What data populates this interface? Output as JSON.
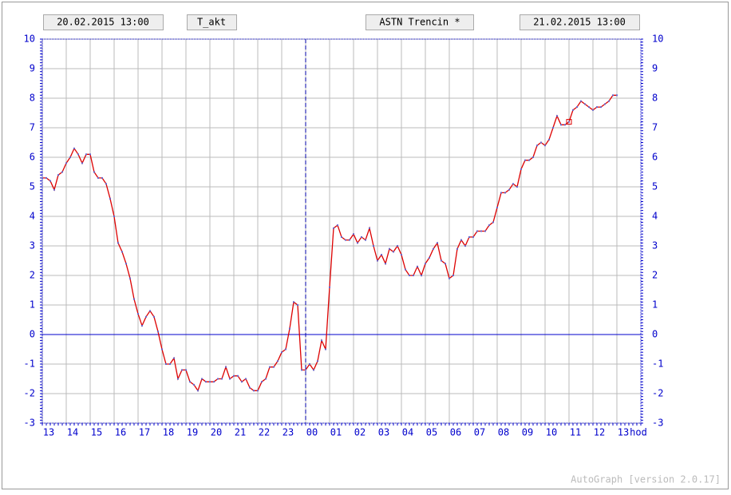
{
  "header": {
    "start": "20.02.2015 13:00",
    "variable": "T_akt",
    "station": "ASTN Trencin *",
    "end": "21.02.2015 13:00"
  },
  "footer": "AutoGraph [version 2.0.17]",
  "chart_data": {
    "type": "line",
    "x_label": "hod",
    "color": "#dd0000",
    "point_color": "#6666cc",
    "zero_line_color": "#0000cc",
    "grid": true,
    "xlim": [
      0,
      1500
    ],
    "ylim": [
      -3,
      10
    ],
    "yticks": [
      -3,
      -2,
      -1,
      0,
      1,
      2,
      3,
      4,
      5,
      6,
      7,
      8,
      9,
      10
    ],
    "xticks": [
      {
        "value": 0,
        "label": "13"
      },
      {
        "value": 60,
        "label": "14"
      },
      {
        "value": 120,
        "label": "15"
      },
      {
        "value": 180,
        "label": "16"
      },
      {
        "value": 240,
        "label": "17"
      },
      {
        "value": 300,
        "label": "18"
      },
      {
        "value": 360,
        "label": "19"
      },
      {
        "value": 420,
        "label": "20"
      },
      {
        "value": 480,
        "label": "21"
      },
      {
        "value": 540,
        "label": "22"
      },
      {
        "value": 600,
        "label": "23"
      },
      {
        "value": 660,
        "label": "00"
      },
      {
        "value": 720,
        "label": "01"
      },
      {
        "value": 780,
        "label": "02"
      },
      {
        "value": 840,
        "label": "03"
      },
      {
        "value": 900,
        "label": "04"
      },
      {
        "value": 960,
        "label": "05"
      },
      {
        "value": 1020,
        "label": "06"
      },
      {
        "value": 1080,
        "label": "07"
      },
      {
        "value": 1140,
        "label": "08"
      },
      {
        "value": 1200,
        "label": "09"
      },
      {
        "value": 1260,
        "label": "10"
      },
      {
        "value": 1320,
        "label": "11"
      },
      {
        "value": 1380,
        "label": "12"
      },
      {
        "value": 1440,
        "label": "13"
      }
    ],
    "divider_x": 660,
    "marker_x": 1320,
    "x": [
      0,
      10,
      20,
      30,
      40,
      50,
      60,
      70,
      80,
      90,
      100,
      110,
      120,
      130,
      140,
      150,
      160,
      170,
      180,
      190,
      200,
      210,
      220,
      230,
      240,
      250,
      260,
      270,
      280,
      290,
      300,
      310,
      320,
      330,
      340,
      350,
      360,
      370,
      380,
      390,
      400,
      410,
      420,
      430,
      440,
      450,
      460,
      470,
      480,
      490,
      500,
      510,
      520,
      530,
      540,
      550,
      560,
      570,
      580,
      590,
      600,
      610,
      620,
      630,
      640,
      650,
      660,
      670,
      680,
      690,
      700,
      710,
      720,
      730,
      740,
      750,
      760,
      770,
      780,
      790,
      800,
      810,
      820,
      830,
      840,
      850,
      860,
      870,
      880,
      890,
      900,
      910,
      920,
      930,
      940,
      950,
      960,
      970,
      980,
      990,
      1000,
      1010,
      1020,
      1030,
      1040,
      1050,
      1060,
      1070,
      1080,
      1090,
      1100,
      1110,
      1120,
      1130,
      1140,
      1150,
      1160,
      1170,
      1180,
      1190,
      1200,
      1210,
      1220,
      1230,
      1240,
      1250,
      1260,
      1270,
      1280,
      1290,
      1300,
      1310,
      1320,
      1330,
      1340,
      1350,
      1360,
      1370,
      1380,
      1390,
      1400,
      1410,
      1420,
      1430,
      1440
    ],
    "values": [
      5.3,
      5.3,
      5.2,
      4.9,
      5.4,
      5.5,
      5.8,
      6.0,
      6.3,
      6.1,
      5.8,
      6.1,
      6.1,
      5.5,
      5.3,
      5.3,
      5.1,
      4.6,
      4.0,
      3.1,
      2.8,
      2.4,
      1.9,
      1.2,
      0.7,
      0.3,
      0.6,
      0.8,
      0.6,
      0.1,
      -0.5,
      -1.0,
      -1.0,
      -0.8,
      -1.5,
      -1.2,
      -1.2,
      -1.6,
      -1.7,
      -1.9,
      -1.5,
      -1.6,
      -1.6,
      -1.6,
      -1.5,
      -1.5,
      -1.1,
      -1.5,
      -1.4,
      -1.4,
      -1.6,
      -1.5,
      -1.8,
      -1.9,
      -1.9,
      -1.6,
      -1.5,
      -1.1,
      -1.1,
      -0.9,
      -0.6,
      -0.5,
      0.2,
      1.1,
      1.0,
      -1.2,
      -1.2,
      -1.0,
      -1.2,
      -0.9,
      -0.2,
      -0.5,
      1.6,
      3.6,
      3.7,
      3.3,
      3.2,
      3.2,
      3.4,
      3.1,
      3.3,
      3.2,
      3.6,
      3.0,
      2.5,
      2.7,
      2.4,
      2.9,
      2.8,
      3.0,
      2.7,
      2.2,
      2.0,
      2.0,
      2.3,
      2.0,
      2.4,
      2.6,
      2.9,
      3.1,
      2.5,
      2.4,
      1.9,
      2.0,
      2.9,
      3.2,
      3.0,
      3.3,
      3.3,
      3.5,
      3.5,
      3.5,
      3.7,
      3.8,
      4.3,
      4.8,
      4.8,
      4.9,
      5.1,
      5.0,
      5.6,
      5.9,
      5.9,
      6.0,
      6.4,
      6.5,
      6.4,
      6.6,
      7.0,
      7.4,
      7.1,
      7.1,
      7.2,
      7.6,
      7.7,
      7.9,
      7.8,
      7.7,
      7.6,
      7.7,
      7.7,
      7.8,
      7.9,
      8.1,
      8.1
    ]
  }
}
